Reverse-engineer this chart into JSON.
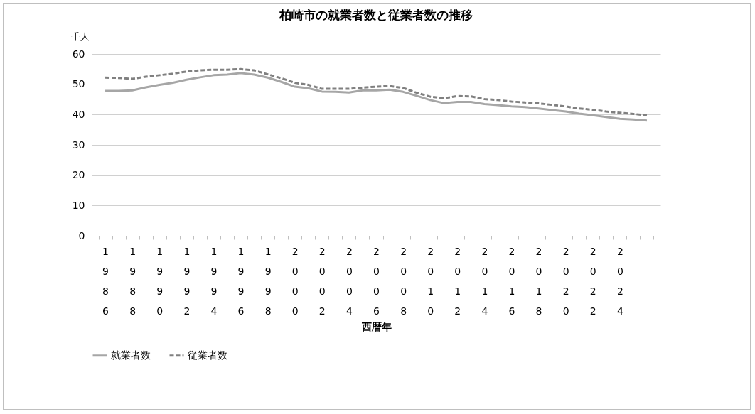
{
  "chart_data": {
    "type": "line",
    "title": "柏崎市の就業者数と従業者数の推移",
    "xlabel": "西暦年",
    "ylabel": "千人",
    "categories": [
      "1986",
      null,
      "1988",
      null,
      "1990",
      null,
      "1992",
      null,
      "1994",
      null,
      "1996",
      null,
      "1998",
      null,
      "2000",
      null,
      "2002",
      null,
      "2004",
      null,
      "2006",
      null,
      "2008",
      null,
      "2010",
      null,
      "2012",
      null,
      "2014",
      null,
      "2016",
      null,
      "2018",
      null,
      "2020",
      null,
      "2022",
      null,
      "2024",
      null,
      null
    ],
    "series": [
      {
        "name": "就業者数",
        "color": "#a6a6a6",
        "line_style": "solid",
        "values": [
          47.8,
          47.8,
          48,
          49,
          49.8,
          50.5,
          51.5,
          52.3,
          53,
          53.2,
          53.7,
          53.2,
          52.2,
          50.8,
          49.2,
          48.7,
          47.6,
          47.5,
          47.3,
          48,
          48,
          48.2,
          47.5,
          46.2,
          44.8,
          43.8,
          44.2,
          44.2,
          43.5,
          43.1,
          42.7,
          42.5,
          42,
          41.5,
          41,
          40.3,
          39.8,
          39.2,
          38.6,
          38.4,
          38
        ]
      },
      {
        "name": "従業者数",
        "color": "#808080",
        "line_style": "dashed",
        "values": [
          52.2,
          52.1,
          51.8,
          52.5,
          53,
          53.5,
          54.2,
          54.6,
          54.8,
          54.8,
          55,
          54.6,
          53.3,
          52,
          50.5,
          49.8,
          48.5,
          48.5,
          48.5,
          48.9,
          49.2,
          49.4,
          48.8,
          47.2,
          45.9,
          45.4,
          46.1,
          46,
          45.1,
          44.8,
          44.3,
          44,
          43.7,
          43.2,
          42.7,
          42,
          41.6,
          41,
          40.6,
          40.2,
          39.8
        ]
      }
    ],
    "ylim": [
      0,
      60
    ],
    "yticks": [
      0,
      10,
      20,
      30,
      40,
      50,
      60
    ],
    "grid": "y",
    "legend": "bottom",
    "marker": "none"
  }
}
